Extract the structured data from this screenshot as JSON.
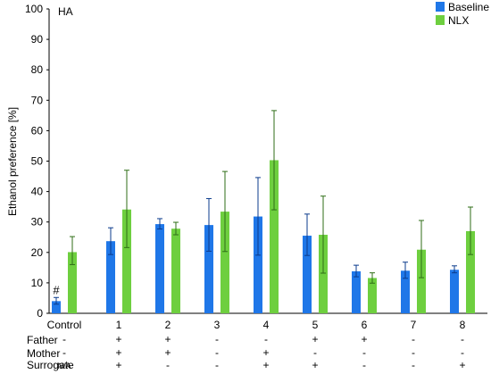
{
  "chart_data": {
    "type": "bar",
    "annotation": "HA",
    "ylabel": "Ethanol preference [%]",
    "ylim": [
      0,
      100
    ],
    "yticks": [
      0,
      10,
      20,
      30,
      40,
      50,
      60,
      70,
      80,
      90,
      100
    ],
    "categories": [
      "Control",
      "1",
      "2",
      "3",
      "4",
      "5",
      "6",
      "7",
      "8"
    ],
    "legend": {
      "placement": "top-right"
    },
    "series": [
      {
        "name": "Baseline",
        "color": "#1f77e8",
        "values": [
          4.0,
          23.7,
          29.3,
          29.0,
          31.8,
          25.5,
          13.8,
          14.0,
          14.3
        ],
        "err_low": [
          3.0,
          19.3,
          27.7,
          20.4,
          19.1,
          19.0,
          12.0,
          11.5,
          13.3
        ],
        "err_high": [
          5.2,
          28.1,
          31.1,
          37.7,
          44.6,
          32.6,
          15.8,
          16.8,
          15.6
        ]
      },
      {
        "name": "NLX",
        "color": "#6ecf3f",
        "values": [
          20.1,
          34.1,
          27.8,
          33.4,
          50.3,
          25.8,
          11.6,
          20.9,
          27.0
        ],
        "err_low": [
          16.0,
          21.6,
          25.8,
          20.3,
          34.0,
          13.2,
          9.9,
          11.7,
          19.3
        ],
        "err_high": [
          25.2,
          47.0,
          29.9,
          46.6,
          66.6,
          38.5,
          13.3,
          30.5,
          34.9
        ]
      }
    ],
    "bar_annotations": [
      {
        "category": "Control",
        "series": "Baseline",
        "text": "#"
      }
    ],
    "condition_rows": [
      {
        "label": "Father",
        "values": [
          "-",
          "+",
          "+",
          "-",
          "-",
          "+",
          "+",
          "-",
          "-"
        ]
      },
      {
        "label": "Mother",
        "values": [
          "-",
          "+",
          "+",
          "-",
          "+",
          "-",
          "-",
          "-",
          "-"
        ]
      },
      {
        "label": "Surrogate",
        "values": [
          "N/A",
          "+",
          "-",
          "-",
          "+",
          "+",
          "-",
          "-",
          "+"
        ]
      }
    ]
  }
}
